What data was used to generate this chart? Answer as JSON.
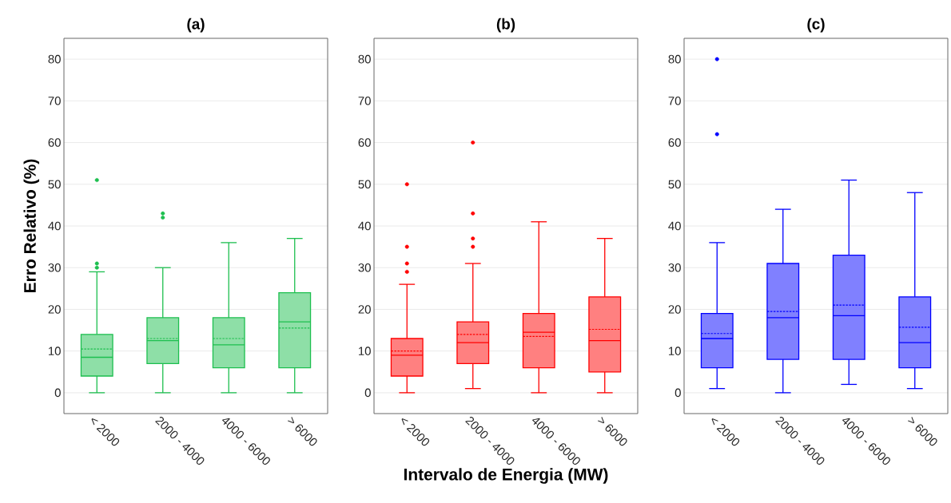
{
  "chart_data": [
    {
      "type": "box",
      "title": "(a)",
      "ylabel": "Erro Relativo (%)",
      "categories": [
        "< 2000",
        "2000 - 4000",
        "4000 - 6000",
        "> 6000"
      ],
      "ylim": [
        -5,
        85
      ],
      "yticks": [
        0,
        10,
        20,
        30,
        40,
        50,
        60,
        70,
        80
      ],
      "grid": "y",
      "series": [
        {
          "color": "#1dbf4f",
          "boxes": [
            {
              "low": 0,
              "q1": 4,
              "median": 8.5,
              "q3": 14,
              "high": 29,
              "mean": 10.5,
              "outliers": [
                30,
                31,
                51
              ]
            },
            {
              "low": 0,
              "q1": 7,
              "median": 12.5,
              "q3": 18,
              "high": 30,
              "mean": 13,
              "outliers": [
                42,
                43
              ]
            },
            {
              "low": 0,
              "q1": 6,
              "median": 11.5,
              "q3": 18,
              "high": 36,
              "mean": 13
            },
            {
              "low": 0,
              "q1": 6,
              "median": 17,
              "q3": 24,
              "high": 37,
              "mean": 15.5
            }
          ]
        }
      ]
    },
    {
      "type": "box",
      "title": "(b)",
      "xlabel": "Intervalo de Energia (MW)",
      "categories": [
        "< 2000",
        "2000 - 4000",
        "4000 - 6000",
        "> 6000"
      ],
      "ylim": [
        -5,
        85
      ],
      "yticks": [
        0,
        10,
        20,
        30,
        40,
        50,
        60,
        70,
        80
      ],
      "grid": "y",
      "series": [
        {
          "color": "#ff0000",
          "boxes": [
            {
              "low": 0,
              "q1": 4,
              "median": 9,
              "q3": 13,
              "high": 26,
              "mean": 10,
              "outliers": [
                29,
                31,
                35,
                50
              ]
            },
            {
              "low": 1,
              "q1": 7,
              "median": 12,
              "q3": 17,
              "high": 31,
              "mean": 14,
              "outliers": [
                35,
                37,
                43,
                60
              ]
            },
            {
              "low": 0,
              "q1": 6,
              "median": 14.5,
              "q3": 19,
              "high": 41,
              "mean": 13.5
            },
            {
              "low": 0,
              "q1": 5,
              "median": 12.5,
              "q3": 23,
              "high": 37,
              "mean": 15.2
            }
          ]
        }
      ]
    },
    {
      "type": "box",
      "title": "(c)",
      "categories": [
        "< 2000",
        "2000 - 4000",
        "4000 - 6000",
        "> 6000"
      ],
      "ylim": [
        -5,
        85
      ],
      "yticks": [
        0,
        10,
        20,
        30,
        40,
        50,
        60,
        70,
        80
      ],
      "grid": "y",
      "series": [
        {
          "color": "#0000ff",
          "boxes": [
            {
              "low": 1,
              "q1": 6,
              "median": 13,
              "q3": 19,
              "high": 36,
              "mean": 14.2,
              "outliers": [
                62,
                80
              ]
            },
            {
              "low": 0,
              "q1": 8,
              "median": 18,
              "q3": 31,
              "high": 44,
              "mean": 19.5
            },
            {
              "low": 2,
              "q1": 8,
              "median": 18.5,
              "q3": 33,
              "high": 51,
              "mean": 21
            },
            {
              "low": 1,
              "q1": 6,
              "median": 12,
              "q3": 23,
              "high": 48,
              "mean": 15.7
            }
          ]
        }
      ]
    }
  ]
}
